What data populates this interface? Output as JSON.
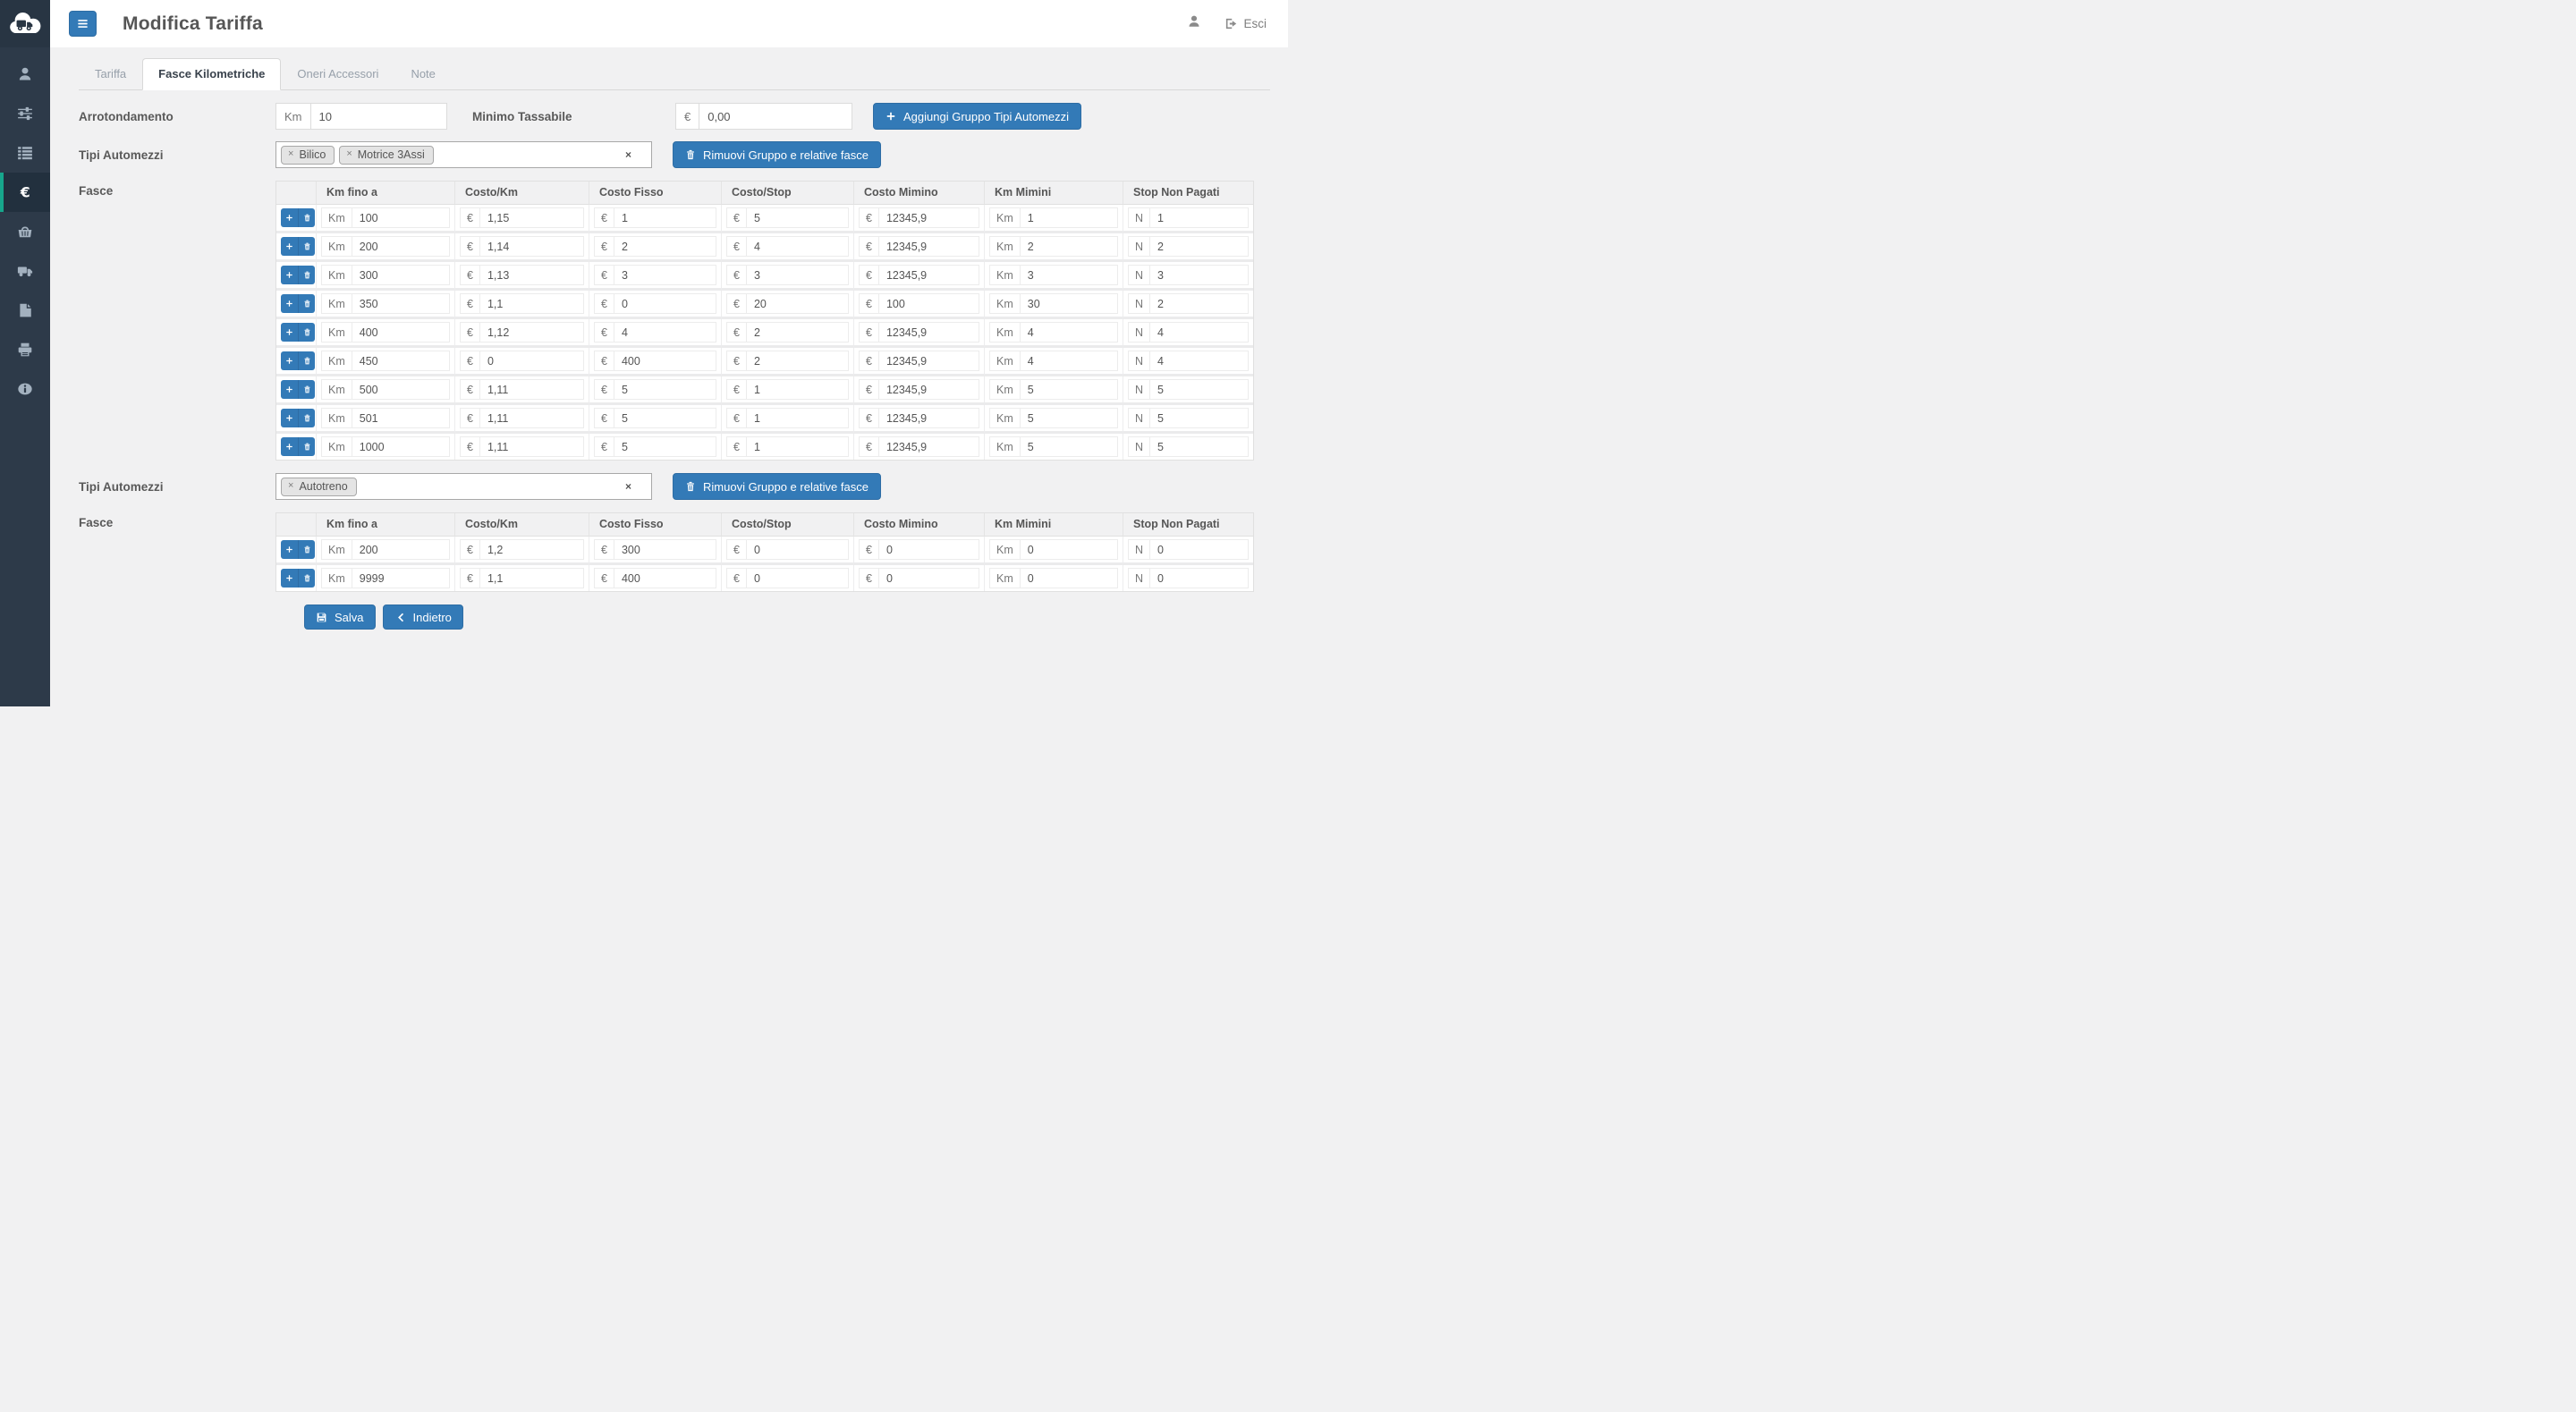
{
  "colors": {
    "accent_blue": "#337ab7",
    "accent_blue_border": "#2e6da4",
    "sidebar_bg": "#2d3a49",
    "sidebar_active_bg": "#22303e",
    "teal_accent": "#17a68c",
    "page_bg": "#f1f1f2"
  },
  "header": {
    "title": "Modifica Tariffa",
    "logo_icon": "cloud-truck-logo",
    "menu_icon": "hamburger-icon",
    "user_icon": "user-icon",
    "logout_icon": "sign-out-icon",
    "logout_label": "Esci"
  },
  "sidebar": {
    "items": [
      {
        "name": "user",
        "icon": "user-icon",
        "active": false
      },
      {
        "name": "sliders",
        "icon": "sliders-icon",
        "active": false
      },
      {
        "name": "list",
        "icon": "list-icon",
        "active": false
      },
      {
        "name": "euro",
        "icon": "euro-icon",
        "active": true
      },
      {
        "name": "basket",
        "icon": "basket-icon",
        "active": false
      },
      {
        "name": "truck",
        "icon": "truck-icon",
        "active": false
      },
      {
        "name": "document",
        "icon": "document-icon",
        "active": false
      },
      {
        "name": "printer",
        "icon": "printer-icon",
        "active": false
      },
      {
        "name": "info",
        "icon": "info-icon",
        "active": false
      }
    ]
  },
  "tabs": [
    {
      "label": "Tariffa",
      "active": false
    },
    {
      "label": "Fasce Kilometriche",
      "active": true
    },
    {
      "label": "Oneri Accessori",
      "active": false
    },
    {
      "label": "Note",
      "active": false
    }
  ],
  "form": {
    "arrotondamento": {
      "label": "Arrotondamento",
      "addon": "Km",
      "value": "10"
    },
    "minimo_tassabile": {
      "label": "Minimo Tassabile",
      "addon": "€",
      "value": "0,00"
    },
    "add_group_button": {
      "label": "Aggiungi Gruppo Tipi Automezzi",
      "icon": "plus-icon"
    }
  },
  "ui": {
    "tag_remove_symbol": "×",
    "clear_symbol": "×"
  },
  "groups": [
    {
      "tipi_label": "Tipi Automezzi",
      "tags": [
        "Bilico",
        "Motrice 3Assi"
      ],
      "remove_button": {
        "label": "Rimuovi Gruppo e relative fasce",
        "icon": "trash-icon"
      },
      "fasce_label": "Fasce",
      "table": {
        "columns": [
          "Km fino a",
          "Costo/Km",
          "Costo Fisso",
          "Costo/Stop",
          "Costo Mimino",
          "Km Mimini",
          "Stop Non Pagati"
        ],
        "addons": [
          "Km",
          "€",
          "€",
          "€",
          "€",
          "Km",
          "N"
        ],
        "fields": [
          "km-fino-a",
          "costo-km",
          "costo-fisso",
          "costo-stop",
          "costo-mimino",
          "km-mimini",
          "stop-non-pagati"
        ],
        "rows": [
          [
            "100",
            "1,15",
            "1",
            "5",
            "12345,9",
            "1",
            "1"
          ],
          [
            "200",
            "1,14",
            "2",
            "4",
            "12345,9",
            "2",
            "2"
          ],
          [
            "300",
            "1,13",
            "3",
            "3",
            "12345,9",
            "3",
            "3"
          ],
          [
            "350",
            "1,1",
            "0",
            "20",
            "100",
            "30",
            "2"
          ],
          [
            "400",
            "1,12",
            "4",
            "2",
            "12345,9",
            "4",
            "4"
          ],
          [
            "450",
            "0",
            "400",
            "2",
            "12345,9",
            "4",
            "4"
          ],
          [
            "500",
            "1,11",
            "5",
            "1",
            "12345,9",
            "5",
            "5"
          ],
          [
            "501",
            "1,11",
            "5",
            "1",
            "12345,9",
            "5",
            "5"
          ],
          [
            "1000",
            "1,11",
            "5",
            "1",
            "12345,9",
            "5",
            "5"
          ]
        ]
      }
    },
    {
      "tipi_label": "Tipi Automezzi",
      "tags": [
        "Autotreno"
      ],
      "remove_button": {
        "label": "Rimuovi Gruppo e relative fasce",
        "icon": "trash-icon"
      },
      "fasce_label": "Fasce",
      "table": {
        "columns": [
          "Km fino a",
          "Costo/Km",
          "Costo Fisso",
          "Costo/Stop",
          "Costo Mimino",
          "Km Mimini",
          "Stop Non Pagati"
        ],
        "addons": [
          "Km",
          "€",
          "€",
          "€",
          "€",
          "Km",
          "N"
        ],
        "fields": [
          "km-fino-a",
          "costo-km",
          "costo-fisso",
          "costo-stop",
          "costo-mimino",
          "km-mimini",
          "stop-non-pagati"
        ],
        "rows": [
          [
            "200",
            "1,2",
            "300",
            "0",
            "0",
            "0",
            "0"
          ],
          [
            "9999",
            "1,1",
            "400",
            "0",
            "0",
            "0",
            "0"
          ]
        ]
      }
    }
  ],
  "footer": {
    "save": {
      "label": "Salva",
      "icon": "save-icon"
    },
    "back": {
      "label": "Indietro",
      "icon": "chevron-left-icon"
    }
  }
}
